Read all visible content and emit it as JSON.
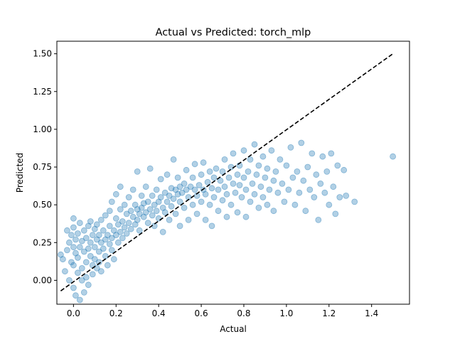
{
  "chart_data": {
    "type": "scatter",
    "title": "Actual vs Predicted: torch_mlp",
    "xlabel": "Actual",
    "ylabel": "Predicted",
    "xlim": [
      -0.078,
      1.578
    ],
    "ylim": [
      -0.158,
      1.583
    ],
    "xticks": [
      0.0,
      0.2,
      0.4,
      0.6,
      0.8,
      1.0,
      1.2,
      1.4
    ],
    "xtick_labels": [
      "0.0",
      "0.2",
      "0.4",
      "0.6",
      "0.8",
      "1.0",
      "1.2",
      "1.4"
    ],
    "yticks": [
      0.0,
      0.25,
      0.5,
      0.75,
      1.0,
      1.25,
      1.5
    ],
    "ytick_labels": [
      "0.00",
      "0.25",
      "0.50",
      "0.75",
      "1.00",
      "1.25",
      "1.50"
    ],
    "grid": false,
    "series": [
      {
        "marker": "circle",
        "color": "#1f77b4",
        "alpha": 0.35,
        "points": [
          [
            -0.06,
            0.17
          ],
          [
            -0.05,
            0.14
          ],
          [
            -0.04,
            0.06
          ],
          [
            -0.03,
            0.33
          ],
          [
            -0.03,
            0.2
          ],
          [
            -0.02,
            0.25
          ],
          [
            -0.02,
            0.0
          ],
          [
            -0.01,
            0.12
          ],
          [
            -0.01,
            0.3
          ],
          [
            0.0,
            0.22
          ],
          [
            0.0,
            0.1
          ],
          [
            0.0,
            -0.05
          ],
          [
            0.0,
            0.35
          ],
          [
            0.0,
            0.41
          ],
          [
            0.01,
            0.18
          ],
          [
            0.01,
            0.27
          ],
          [
            0.01,
            -0.1
          ],
          [
            0.02,
            0.05
          ],
          [
            0.02,
            0.31
          ],
          [
            0.02,
            0.15
          ],
          [
            0.03,
            0.22
          ],
          [
            0.03,
            -0.13
          ],
          [
            0.03,
            0.38
          ],
          [
            0.04,
            0.08
          ],
          [
            0.04,
            0.26
          ],
          [
            0.04,
            0.0
          ],
          [
            0.05,
            0.19
          ],
          [
            0.05,
            0.33
          ],
          [
            0.05,
            -0.08
          ],
          [
            0.06,
            0.12
          ],
          [
            0.06,
            0.28
          ],
          [
            0.06,
            0.02
          ],
          [
            0.07,
            0.21
          ],
          [
            0.07,
            0.36
          ],
          [
            0.07,
            -0.03
          ],
          [
            0.08,
            0.16
          ],
          [
            0.08,
            0.25
          ],
          [
            0.08,
            0.39
          ],
          [
            0.09,
            0.1
          ],
          [
            0.09,
            0.3
          ],
          [
            0.09,
            0.04
          ],
          [
            0.1,
            0.22
          ],
          [
            0.1,
            0.34
          ],
          [
            0.1,
            0.14
          ],
          [
            0.11,
            0.27
          ],
          [
            0.11,
            0.08
          ],
          [
            0.11,
            0.37
          ],
          [
            0.12,
            0.19
          ],
          [
            0.12,
            0.3
          ],
          [
            0.12,
            0.12
          ],
          [
            0.13,
            0.25
          ],
          [
            0.13,
            0.4
          ],
          [
            0.13,
            0.06
          ],
          [
            0.14,
            0.21
          ],
          [
            0.14,
            0.33
          ],
          [
            0.15,
            0.27
          ],
          [
            0.15,
            0.16
          ],
          [
            0.15,
            0.43
          ],
          [
            0.16,
            0.3
          ],
          [
            0.16,
            0.1
          ],
          [
            0.17,
            0.24
          ],
          [
            0.17,
            0.36
          ],
          [
            0.17,
            0.46
          ],
          [
            0.18,
            0.28
          ],
          [
            0.18,
            0.2
          ],
          [
            0.18,
            0.52
          ],
          [
            0.19,
            0.33
          ],
          [
            0.19,
            0.14
          ],
          [
            0.2,
            0.3
          ],
          [
            0.2,
            0.41
          ],
          [
            0.2,
            0.57
          ],
          [
            0.21,
            0.25
          ],
          [
            0.21,
            0.37
          ],
          [
            0.22,
            0.32
          ],
          [
            0.22,
            0.47
          ],
          [
            0.22,
            0.62
          ],
          [
            0.23,
            0.28
          ],
          [
            0.23,
            0.39
          ],
          [
            0.24,
            0.35
          ],
          [
            0.24,
            0.5
          ],
          [
            0.25,
            0.31
          ],
          [
            0.25,
            0.44
          ],
          [
            0.26,
            0.38
          ],
          [
            0.26,
            0.55
          ],
          [
            0.27,
            0.34
          ],
          [
            0.27,
            0.46
          ],
          [
            0.28,
            0.42
          ],
          [
            0.28,
            0.6
          ],
          [
            0.29,
            0.37
          ],
          [
            0.29,
            0.5
          ],
          [
            0.3,
            0.4
          ],
          [
            0.3,
            0.47
          ],
          [
            0.3,
            0.72
          ],
          [
            0.31,
            0.44
          ],
          [
            0.31,
            0.33
          ],
          [
            0.32,
            0.48
          ],
          [
            0.32,
            0.56
          ],
          [
            0.33,
            0.42
          ],
          [
            0.33,
            0.51
          ],
          [
            0.34,
            0.45
          ],
          [
            0.34,
            0.62
          ],
          [
            0.35,
            0.38
          ],
          [
            0.35,
            0.52
          ],
          [
            0.36,
            0.47
          ],
          [
            0.36,
            0.74
          ],
          [
            0.37,
            0.43
          ],
          [
            0.37,
            0.56
          ],
          [
            0.38,
            0.5
          ],
          [
            0.38,
            0.36
          ],
          [
            0.39,
            0.46
          ],
          [
            0.39,
            0.6
          ],
          [
            0.4,
            0.52
          ],
          [
            0.4,
            0.41
          ],
          [
            0.41,
            0.55
          ],
          [
            0.41,
            0.67
          ],
          [
            0.42,
            0.48
          ],
          [
            0.42,
            0.32
          ],
          [
            0.43,
            0.58
          ],
          [
            0.43,
            0.45
          ],
          [
            0.44,
            0.52
          ],
          [
            0.44,
            0.7
          ],
          [
            0.45,
            0.56
          ],
          [
            0.45,
            0.4
          ],
          [
            0.46,
            0.61
          ],
          [
            0.46,
            0.49
          ],
          [
            0.47,
            0.54
          ],
          [
            0.47,
            0.8
          ],
          [
            0.48,
            0.6
          ],
          [
            0.48,
            0.44
          ],
          [
            0.49,
            0.57
          ],
          [
            0.49,
            0.68
          ],
          [
            0.5,
            0.52
          ],
          [
            0.5,
            0.62
          ],
          [
            0.5,
            0.36
          ],
          [
            0.51,
            0.58
          ],
          [
            0.52,
            0.64
          ],
          [
            0.52,
            0.48
          ],
          [
            0.53,
            0.6
          ],
          [
            0.53,
            0.73
          ],
          [
            0.54,
            0.55
          ],
          [
            0.54,
            0.4
          ],
          [
            0.55,
            0.62
          ],
          [
            0.56,
            0.68
          ],
          [
            0.56,
            0.5
          ],
          [
            0.57,
            0.6
          ],
          [
            0.57,
            0.77
          ],
          [
            0.58,
            0.56
          ],
          [
            0.58,
            0.44
          ],
          [
            0.59,
            0.63
          ],
          [
            0.6,
            0.7
          ],
          [
            0.6,
            0.52
          ],
          [
            0.61,
            0.6
          ],
          [
            0.61,
            0.78
          ],
          [
            0.62,
            0.57
          ],
          [
            0.62,
            0.4
          ],
          [
            0.63,
            0.65
          ],
          [
            0.64,
            0.72
          ],
          [
            0.64,
            0.5
          ],
          [
            0.65,
            0.61
          ],
          [
            0.65,
            0.36
          ],
          [
            0.66,
            0.68
          ],
          [
            0.66,
            0.55
          ],
          [
            0.67,
            0.74
          ],
          [
            0.68,
            0.6
          ],
          [
            0.68,
            0.46
          ],
          [
            0.69,
            0.66
          ],
          [
            0.7,
            0.72
          ],
          [
            0.7,
            0.53
          ],
          [
            0.71,
            0.62
          ],
          [
            0.71,
            0.8
          ],
          [
            0.72,
            0.57
          ],
          [
            0.72,
            0.42
          ],
          [
            0.73,
            0.68
          ],
          [
            0.74,
            0.75
          ],
          [
            0.74,
            0.5
          ],
          [
            0.75,
            0.64
          ],
          [
            0.75,
            0.84
          ],
          [
            0.76,
            0.58
          ],
          [
            0.77,
            0.7
          ],
          [
            0.77,
            0.45
          ],
          [
            0.78,
            0.63
          ],
          [
            0.78,
            0.76
          ],
          [
            0.79,
            0.55
          ],
          [
            0.8,
            0.68
          ],
          [
            0.8,
            0.86
          ],
          [
            0.81,
            0.6
          ],
          [
            0.81,
            0.42
          ],
          [
            0.82,
            0.72
          ],
          [
            0.83,
            0.52
          ],
          [
            0.83,
            0.8
          ],
          [
            0.84,
            0.64
          ],
          [
            0.85,
            0.57
          ],
          [
            0.85,
            0.9
          ],
          [
            0.86,
            0.7
          ],
          [
            0.87,
            0.48
          ],
          [
            0.87,
            0.76
          ],
          [
            0.88,
            0.62
          ],
          [
            0.89,
            0.55
          ],
          [
            0.89,
            0.82
          ],
          [
            0.9,
            0.68
          ],
          [
            0.91,
            0.5
          ],
          [
            0.91,
            0.74
          ],
          [
            0.92,
            0.6
          ],
          [
            0.93,
            0.86
          ],
          [
            0.94,
            0.66
          ],
          [
            0.94,
            0.46
          ],
          [
            0.95,
            0.72
          ],
          [
            0.96,
            0.58
          ],
          [
            0.97,
            0.8
          ],
          [
            0.98,
            0.64
          ],
          [
            0.99,
            0.52
          ],
          [
            1.0,
            0.76
          ],
          [
            1.01,
            0.6
          ],
          [
            1.02,
            0.88
          ],
          [
            1.03,
            0.68
          ],
          [
            1.04,
            0.5
          ],
          [
            1.05,
            0.72
          ],
          [
            1.06,
            0.58
          ],
          [
            1.07,
            0.91
          ],
          [
            1.08,
            0.66
          ],
          [
            1.09,
            0.46
          ],
          [
            1.1,
            0.75
          ],
          [
            1.11,
            0.6
          ],
          [
            1.12,
            0.84
          ],
          [
            1.13,
            0.55
          ],
          [
            1.14,
            0.7
          ],
          [
            1.15,
            0.4
          ],
          [
            1.16,
            0.64
          ],
          [
            1.17,
            0.82
          ],
          [
            1.18,
            0.58
          ],
          [
            1.19,
            0.72
          ],
          [
            1.2,
            0.5
          ],
          [
            1.21,
            0.84
          ],
          [
            1.22,
            0.62
          ],
          [
            1.23,
            0.44
          ],
          [
            1.24,
            0.76
          ],
          [
            1.25,
            0.55
          ],
          [
            1.27,
            0.73
          ],
          [
            1.28,
            0.56
          ],
          [
            1.32,
            0.52
          ],
          [
            1.5,
            0.82
          ]
        ]
      }
    ],
    "reference_line": {
      "style": "dashed",
      "color": "#000000",
      "points": [
        [
          -0.06,
          -0.07
        ],
        [
          1.5,
          1.5
        ]
      ]
    }
  }
}
